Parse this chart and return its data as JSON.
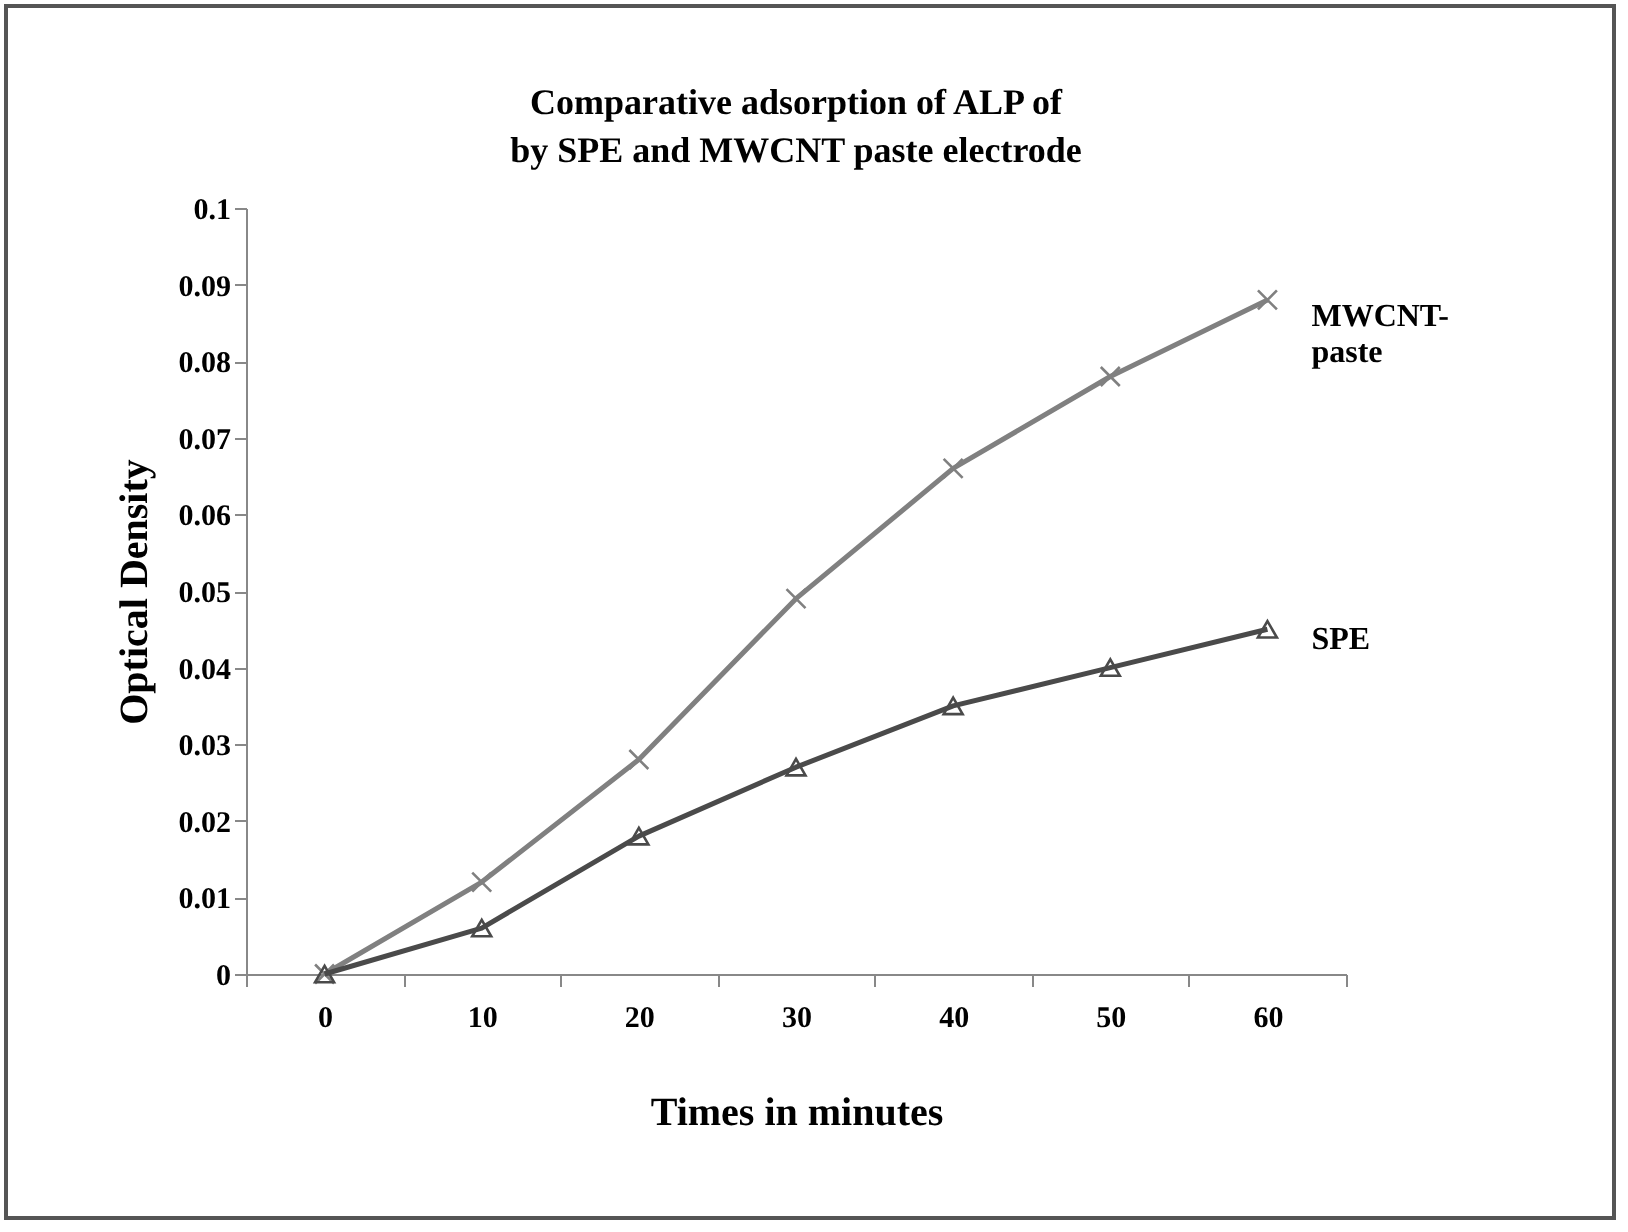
{
  "chart_data": {
    "type": "line",
    "title": "Comparative adsorption of ALP of by SPE and MWCNT paste electrode",
    "xlabel": "Times in minutes",
    "ylabel": "Optical Density",
    "categories": [
      "0",
      "10",
      "20",
      "30",
      "40",
      "50",
      "60"
    ],
    "ylim": [
      0,
      0.1
    ],
    "yticks": [
      0,
      0.01,
      0.02,
      0.03,
      0.04,
      0.05,
      0.06,
      0.07,
      0.08,
      0.09,
      0.1
    ],
    "grid": false,
    "line_style": "solid",
    "series": [
      {
        "name": "MWCNT-\npaste",
        "color": "#808080",
        "marker": "cross",
        "values": [
          0,
          0.012,
          0.028,
          0.049,
          0.066,
          0.078,
          0.088
        ]
      },
      {
        "name": "SPE",
        "color": "#4a4a4a",
        "marker": "triangle",
        "values": [
          0,
          0.006,
          0.018,
          0.027,
          0.035,
          0.04,
          0.045
        ]
      }
    ]
  }
}
